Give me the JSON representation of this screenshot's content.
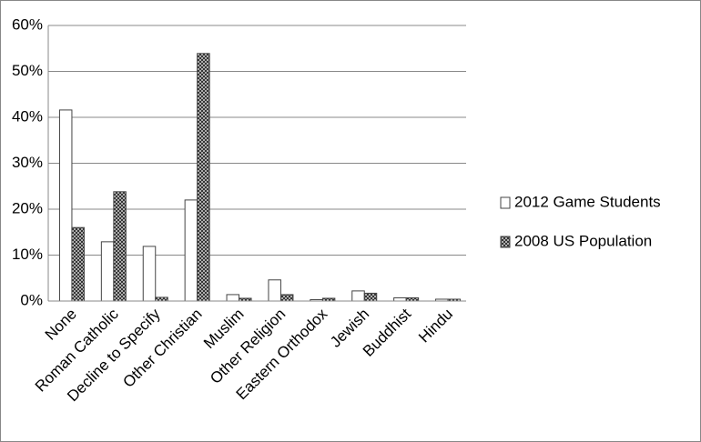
{
  "chart_data": {
    "type": "bar",
    "categories": [
      "None",
      "Roman Catholic",
      "Decline to Specify",
      "Other Christian",
      "Muslim",
      "Other Religion",
      "Eastern Orthodox",
      "Jewish",
      "Buddhist",
      "Hindu"
    ],
    "series": [
      {
        "name": "2012 Game Students",
        "color": "#ffffff",
        "values": [
          41.6,
          12.9,
          11.9,
          22.0,
          1.4,
          4.6,
          0.3,
          2.2,
          0.7,
          0.4
        ]
      },
      {
        "name": "2008 US Population",
        "color": "#333333",
        "hatch": true,
        "values": [
          16.0,
          23.8,
          0.8,
          53.9,
          0.6,
          1.4,
          0.6,
          1.7,
          0.7,
          0.4
        ]
      }
    ],
    "ylim": [
      0,
      60
    ],
    "yticks": [
      {
        "value": 0,
        "label": "0%"
      },
      {
        "value": 10,
        "label": "10%"
      },
      {
        "value": 20,
        "label": "20%"
      },
      {
        "value": 30,
        "label": "30%"
      },
      {
        "value": 40,
        "label": "40%"
      },
      {
        "value": 50,
        "label": "50%"
      },
      {
        "value": 60,
        "label": "60%"
      }
    ],
    "grid": true,
    "legend": "right"
  }
}
